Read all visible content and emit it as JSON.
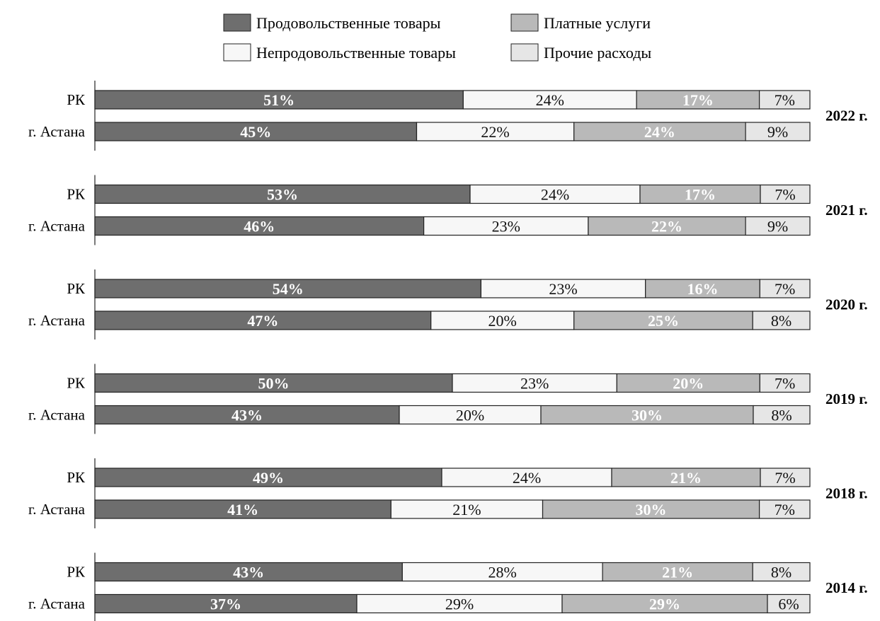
{
  "chart_data": {
    "type": "bar",
    "orientation": "horizontal",
    "stacked": true,
    "normalized": true,
    "title": "",
    "value_unit": "%",
    "groups": [
      "2022 г.",
      "2021 г.",
      "2020 г.",
      "2019 г.",
      "2018 г.",
      "2014 г."
    ],
    "categories": [
      "РК",
      "г. Астана"
    ],
    "legend": {
      "placement": "top",
      "entries": [
        {
          "name": "Продовольственные товары",
          "color": "#6e6e6e"
        },
        {
          "name": "Платные услуги",
          "color": "#b9b9b9"
        },
        {
          "name": "Непродовольственные товары",
          "color": "#f7f7f7"
        },
        {
          "name": "Прочие расходы",
          "color": "#e6e6e6"
        }
      ]
    },
    "series": [
      {
        "name": "Продовольственные товары",
        "color": "#6e6e6e",
        "text_color": "#ffffff",
        "values": [
          [
            51,
            45
          ],
          [
            53,
            46
          ],
          [
            54,
            47
          ],
          [
            50,
            43
          ],
          [
            49,
            41
          ],
          [
            43,
            37
          ]
        ]
      },
      {
        "name": "Непродовольственные товары",
        "color": "#f7f7f7",
        "text_color": "#111111",
        "values": [
          [
            24,
            22
          ],
          [
            24,
            23
          ],
          [
            23,
            20
          ],
          [
            23,
            20
          ],
          [
            24,
            21
          ],
          [
            28,
            29
          ]
        ]
      },
      {
        "name": "Платные услуги",
        "color": "#b9b9b9",
        "text_color": "#ffffff",
        "values": [
          [
            17,
            24
          ],
          [
            17,
            22
          ],
          [
            16,
            25
          ],
          [
            20,
            30
          ],
          [
            21,
            30
          ],
          [
            21,
            29
          ]
        ]
      },
      {
        "name": "Прочие расходы",
        "color": "#e6e6e6",
        "text_color": "#111111",
        "values": [
          [
            7,
            9
          ],
          [
            7,
            9
          ],
          [
            7,
            8
          ],
          [
            7,
            8
          ],
          [
            7,
            7
          ],
          [
            8,
            6
          ]
        ]
      }
    ],
    "grid": false
  }
}
